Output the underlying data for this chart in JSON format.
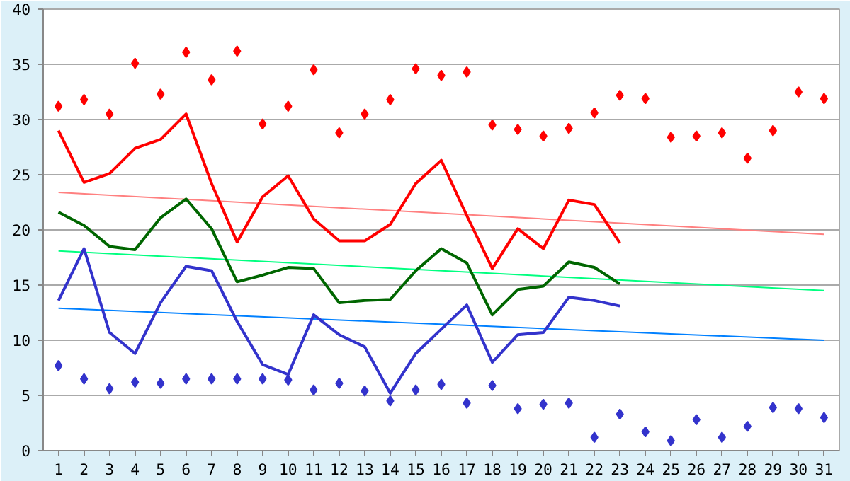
{
  "chart_data": {
    "type": "line",
    "xlim": [
      0.4,
      31.6
    ],
    "xticks": [
      1,
      2,
      3,
      4,
      5,
      6,
      7,
      8,
      9,
      10,
      11,
      12,
      13,
      14,
      15,
      16,
      17,
      18,
      19,
      20,
      21,
      22,
      23,
      24,
      25,
      26,
      27,
      28,
      29,
      30,
      31
    ],
    "ylim": [
      0,
      40
    ],
    "yticks": [
      0,
      5,
      10,
      15,
      20,
      25,
      30,
      35,
      40
    ],
    "grid": "y",
    "series": [
      {
        "type": "scatter",
        "marker": "diamond",
        "color": "#ff0000",
        "x": [
          1,
          2,
          3,
          4,
          5,
          6,
          7,
          8,
          9,
          10,
          11,
          12,
          13,
          14,
          15,
          16,
          17,
          18,
          19,
          20,
          21,
          22,
          23,
          24,
          25,
          26,
          27,
          28,
          29,
          30,
          31
        ],
        "values": [
          31.2,
          31.8,
          30.5,
          35.1,
          32.3,
          36.1,
          33.6,
          36.2,
          29.6,
          31.2,
          34.5,
          28.8,
          30.5,
          31.8,
          34.6,
          34.0,
          34.3,
          29.5,
          29.1,
          28.5,
          29.2,
          30.6,
          32.2,
          31.9,
          28.4,
          28.5,
          28.8,
          26.5,
          29.0,
          32.5,
          31.9
        ]
      },
      {
        "type": "scatter",
        "marker": "diamond",
        "color": "#3333cc",
        "x": [
          1,
          2,
          3,
          4,
          5,
          6,
          7,
          8,
          9,
          10,
          11,
          12,
          13,
          14,
          15,
          16,
          17,
          18,
          19,
          20,
          21,
          22,
          23,
          24,
          25,
          26,
          27,
          28,
          29,
          30,
          31
        ],
        "values": [
          7.7,
          6.5,
          5.6,
          6.2,
          6.1,
          6.5,
          6.5,
          6.5,
          6.5,
          6.4,
          5.5,
          6.1,
          5.4,
          4.5,
          5.5,
          6.0,
          4.3,
          5.9,
          3.8,
          4.2,
          4.3,
          1.2,
          3.3,
          1.7,
          0.9,
          2.8,
          1.2,
          2.2,
          3.9,
          3.8,
          3.0
        ]
      },
      {
        "color": "#ff8080",
        "x": [
          1,
          31
        ],
        "values": [
          23.4,
          19.6
        ]
      },
      {
        "color": "#00ff80",
        "x": [
          1,
          31
        ],
        "values": [
          18.1,
          14.5
        ]
      },
      {
        "color": "#0080ff",
        "x": [
          1,
          31
        ],
        "values": [
          12.9,
          10.0
        ]
      },
      {
        "color": "#ff0000",
        "x": [
          1,
          2,
          3,
          4,
          5,
          6,
          7,
          8,
          9,
          10,
          11,
          12,
          13,
          14,
          15,
          16,
          17,
          18,
          19,
          20,
          21,
          22,
          23
        ],
        "values": [
          29.0,
          24.3,
          25.1,
          27.4,
          28.2,
          30.5,
          24.2,
          18.9,
          23.0,
          24.9,
          21.0,
          19.0,
          19.0,
          20.5,
          24.2,
          26.3,
          21.3,
          16.5,
          20.1,
          18.3,
          22.7,
          22.3,
          18.8
        ]
      },
      {
        "color": "#006600",
        "x": [
          1,
          2,
          3,
          4,
          5,
          6,
          7,
          8,
          9,
          10,
          11,
          12,
          13,
          14,
          15,
          16,
          17,
          18,
          19,
          20,
          21,
          22,
          23
        ],
        "values": [
          21.6,
          20.4,
          18.5,
          18.2,
          21.1,
          22.8,
          20.1,
          15.3,
          15.9,
          16.6,
          16.5,
          13.4,
          13.6,
          13.7,
          16.3,
          18.3,
          17.0,
          12.3,
          14.6,
          14.9,
          17.1,
          16.6,
          15.1
        ]
      },
      {
        "color": "#3333cc",
        "x": [
          1,
          2,
          3,
          4,
          5,
          6,
          7,
          8,
          9,
          10,
          11,
          12,
          13,
          14,
          15,
          16,
          17,
          18,
          19,
          20,
          21,
          22,
          23
        ],
        "values": [
          13.6,
          18.3,
          10.7,
          8.8,
          13.4,
          16.7,
          16.3,
          11.7,
          7.8,
          6.9,
          12.3,
          10.5,
          9.4,
          5.2,
          8.8,
          11.0,
          13.2,
          8.0,
          10.5,
          10.7,
          13.9,
          13.6,
          13.1
        ]
      }
    ]
  }
}
